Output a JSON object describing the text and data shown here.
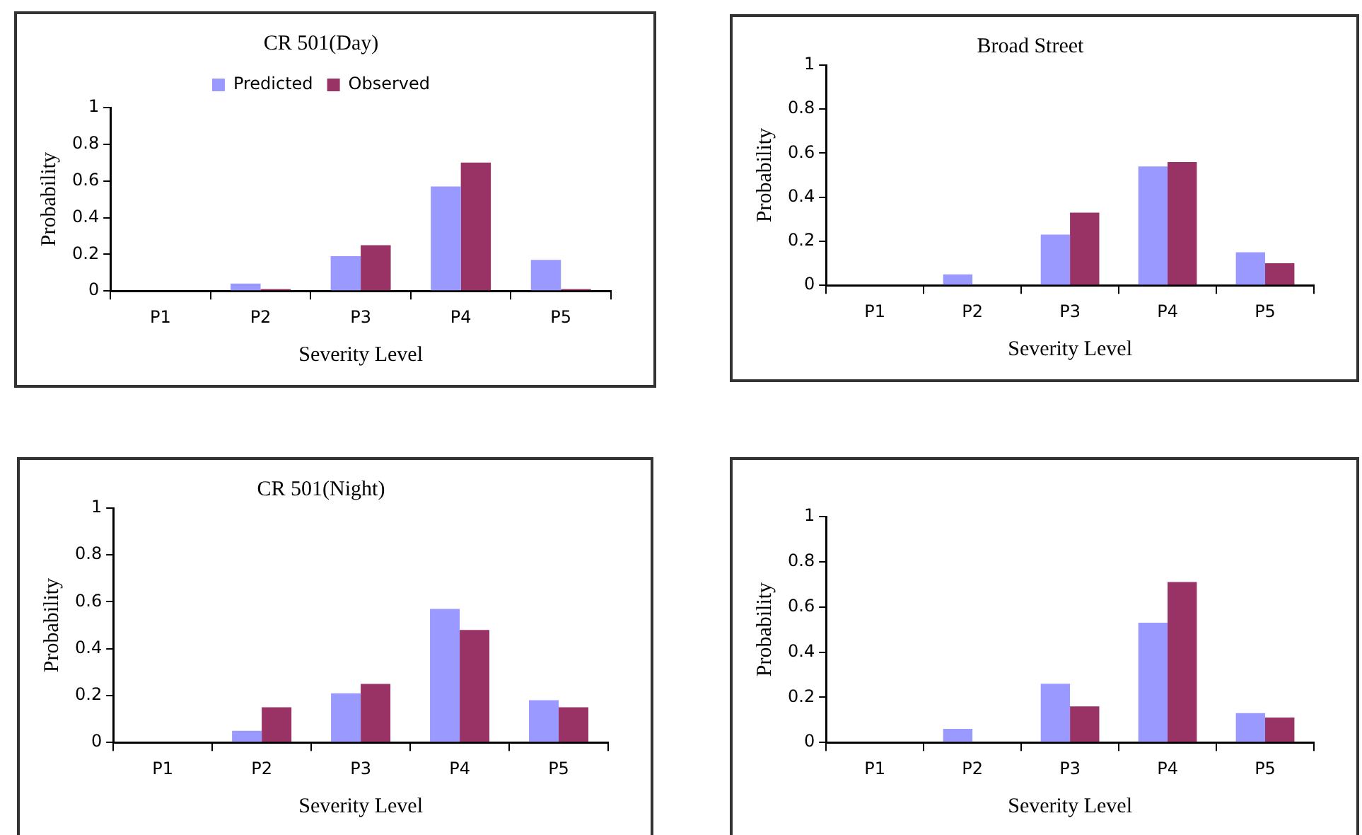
{
  "chart_data": [
    {
      "type": "bar",
      "title": "CR 501(Day)",
      "xlabel": "Severity Level",
      "ylabel": "Probability",
      "categories": [
        "P1",
        "P2",
        "P3",
        "P4",
        "P5"
      ],
      "series": [
        {
          "name": "Predicted",
          "color": "#9999ff",
          "values": [
            0,
            0.04,
            0.19,
            0.57,
            0.17
          ]
        },
        {
          "name": "Observed",
          "color": "#993366",
          "values": [
            0,
            0.01,
            0.25,
            0.7,
            0.01
          ]
        }
      ],
      "ylim": [
        0,
        1
      ],
      "yticks": [
        0,
        0.2,
        0.4,
        0.6,
        0.8,
        1
      ],
      "grid": false,
      "legend": "top"
    },
    {
      "type": "bar",
      "title": "Broad Street",
      "xlabel": "Severity Level",
      "ylabel": "Probability",
      "categories": [
        "P1",
        "P2",
        "P3",
        "P4",
        "P5"
      ],
      "series": [
        {
          "color": "#9999ff",
          "values": [
            0,
            0.05,
            0.23,
            0.54,
            0.15
          ]
        },
        {
          "color": "#993366",
          "values": [
            0,
            0,
            0.33,
            0.56,
            0.1
          ]
        }
      ],
      "ylim": [
        0,
        1
      ],
      "yticks": [
        0,
        0.2,
        0.4,
        0.6,
        0.8,
        1
      ],
      "grid": false
    },
    {
      "type": "bar",
      "title": "CR 501(Night)",
      "xlabel": "Severity Level",
      "ylabel": "Probability",
      "categories": [
        "P1",
        "P2",
        "P3",
        "P4",
        "P5"
      ],
      "series": [
        {
          "color": "#9999ff",
          "values": [
            0,
            0.05,
            0.21,
            0.57,
            0.18
          ]
        },
        {
          "color": "#993366",
          "values": [
            0,
            0.15,
            0.25,
            0.48,
            0.15
          ]
        }
      ],
      "ylim": [
        0,
        1
      ],
      "yticks": [
        0,
        0.2,
        0.4,
        0.6,
        0.8,
        1
      ],
      "grid": false
    },
    {
      "type": "bar",
      "xlabel": "Severity Level",
      "ylabel": "Probability",
      "categories": [
        "P1",
        "P2",
        "P3",
        "P4",
        "P5"
      ],
      "series": [
        {
          "color": "#9999ff",
          "values": [
            0,
            0.06,
            0.26,
            0.53,
            0.13
          ]
        },
        {
          "color": "#993366",
          "values": [
            0,
            0,
            0.16,
            0.71,
            0.11
          ]
        }
      ],
      "ylim": [
        0,
        1
      ],
      "yticks": [
        0,
        0.2,
        0.4,
        0.6,
        0.8,
        1
      ],
      "grid": false
    }
  ]
}
